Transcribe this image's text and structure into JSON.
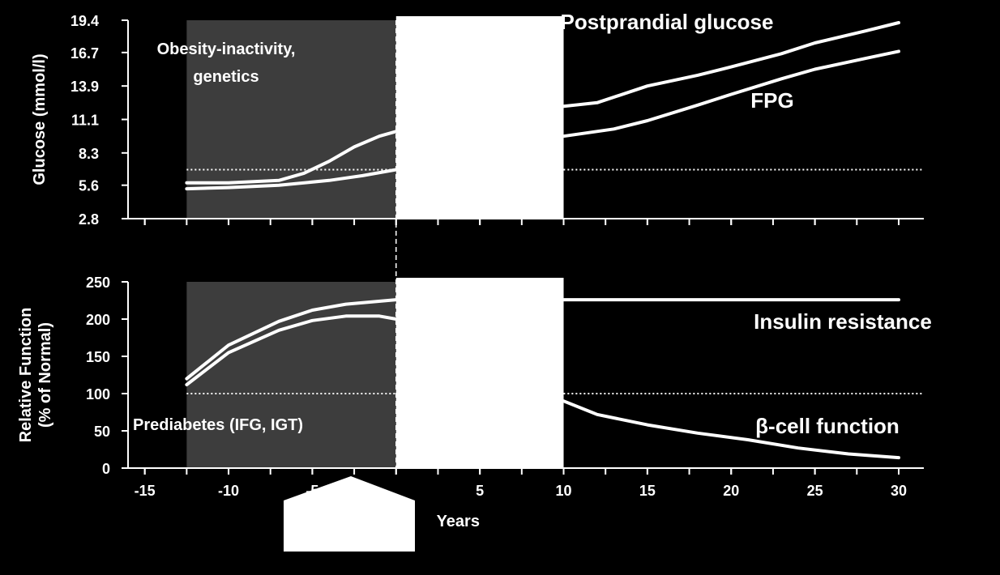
{
  "colors": {
    "background": "#000000",
    "foreground": "#ffffff",
    "shaded_region": "#3d3d3d",
    "blank_region": "#ffffff"
  },
  "x_axis": {
    "label": "Years",
    "ticks": [
      -15,
      -10,
      -5,
      0,
      5,
      10,
      15,
      20,
      25,
      30
    ],
    "tick_labels": [
      "-15",
      "-10",
      "-5",
      "",
      "5",
      "10",
      "15",
      "20",
      "25",
      "30"
    ],
    "range": [
      -16,
      31.5
    ]
  },
  "shaded_region": {
    "from": -12.5,
    "to": 0
  },
  "blank_region": {
    "from": 0,
    "to": 10
  },
  "pointer_shape": {
    "visible": true
  },
  "chart_data": [
    {
      "type": "line",
      "ylabel": "Glucose (mmol/l)",
      "ylim": [
        2.8,
        19.4
      ],
      "yticks": [
        2.8,
        5.6,
        8.3,
        11.1,
        13.9,
        16.7,
        19.4
      ],
      "ytick_labels": [
        "2.8",
        "5.6",
        "8.3",
        "11.1",
        "13.9",
        "16.7",
        "19.4"
      ],
      "reference_line": 6.9,
      "annotation": {
        "text": [
          "Obesity-inactivity,",
          "genetics"
        ]
      },
      "series": [
        {
          "name": "Postprandial glucose",
          "segments": [
            [
              [
                -12.5,
                5.8
              ],
              [
                -10,
                5.8
              ],
              [
                -7,
                6.0
              ],
              [
                -5.5,
                6.6
              ],
              [
                -4,
                7.6
              ],
              [
                -2.5,
                8.8
              ],
              [
                -1,
                9.7
              ],
              [
                0,
                10.1
              ]
            ],
            [
              [
                10,
                12.2
              ],
              [
                12,
                12.5
              ],
              [
                15,
                13.9
              ],
              [
                18,
                14.8
              ],
              [
                20,
                15.5
              ],
              [
                23,
                16.6
              ],
              [
                25,
                17.5
              ],
              [
                28,
                18.5
              ],
              [
                30,
                19.2
              ]
            ]
          ]
        },
        {
          "name": "FPG",
          "segments": [
            [
              [
                -12.5,
                5.3
              ],
              [
                -10,
                5.4
              ],
              [
                -7,
                5.6
              ],
              [
                -4,
                6.0
              ],
              [
                -2,
                6.4
              ],
              [
                0,
                6.9
              ]
            ],
            [
              [
                10,
                9.7
              ],
              [
                13,
                10.3
              ],
              [
                15,
                11.0
              ],
              [
                18,
                12.3
              ],
              [
                20,
                13.2
              ],
              [
                23,
                14.5
              ],
              [
                25,
                15.3
              ],
              [
                28,
                16.2
              ],
              [
                30,
                16.8
              ]
            ]
          ]
        }
      ]
    },
    {
      "type": "line",
      "ylabel": "Relative Function (% of Normal)",
      "ylabel_lines": [
        "Relative Function",
        "(% of Normal)"
      ],
      "ylim": [
        0,
        250
      ],
      "yticks": [
        0,
        50,
        100,
        150,
        200,
        250
      ],
      "ytick_labels": [
        "0",
        "50",
        "100",
        "150",
        "200",
        "250"
      ],
      "reference_line": 100,
      "annotation": {
        "text": [
          "Prediabetes (IFG, IGT)"
        ]
      },
      "series": [
        {
          "name": "Insulin resistance",
          "segments": [
            [
              [
                -12.5,
                120
              ],
              [
                -10,
                165
              ],
              [
                -7,
                197
              ],
              [
                -5,
                212
              ],
              [
                -3,
                220
              ],
              [
                0,
                226
              ]
            ],
            [
              [
                10,
                226
              ],
              [
                20,
                226
              ],
              [
                30,
                226
              ]
            ]
          ]
        },
        {
          "name": "β-cell function",
          "segments": [
            [
              [
                -12.5,
                112
              ],
              [
                -10,
                155
              ],
              [
                -7,
                185
              ],
              [
                -5,
                198
              ],
              [
                -3,
                204
              ],
              [
                -1,
                204
              ],
              [
                0,
                200
              ]
            ],
            [
              [
                10,
                90
              ],
              [
                12,
                72
              ],
              [
                15,
                58
              ],
              [
                18,
                47
              ],
              [
                21,
                38
              ],
              [
                24,
                27
              ],
              [
                27,
                19
              ],
              [
                30,
                14
              ]
            ]
          ]
        }
      ]
    }
  ]
}
